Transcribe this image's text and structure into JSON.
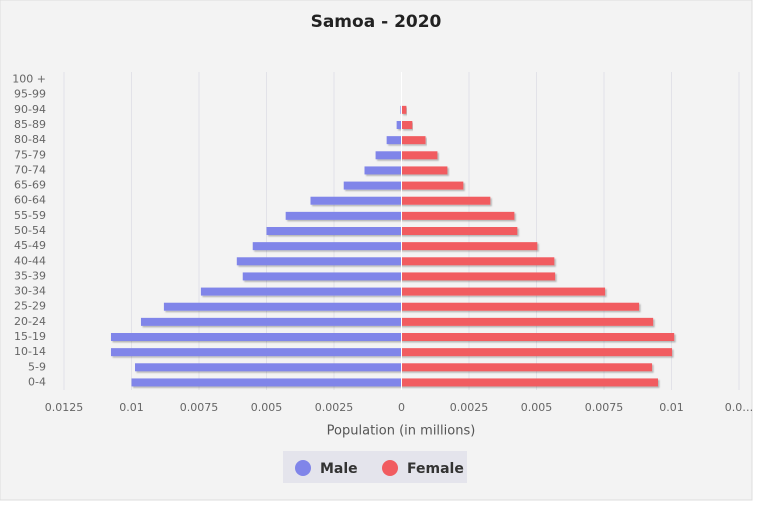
{
  "chart_data": {
    "type": "population-pyramid",
    "title": "Samoa - 2020",
    "x_label": "Population (in millions)",
    "categories": [
      "0-4",
      "5-9",
      "10-14",
      "15-19",
      "20-24",
      "25-29",
      "30-34",
      "35-39",
      "40-44",
      "45-49",
      "50-54",
      "55-59",
      "60-64",
      "65-69",
      "70-74",
      "75-79",
      "80-84",
      "85-89",
      "90-94",
      "95-99",
      "100 +"
    ],
    "series": [
      {
        "name": "Male",
        "color": "#8085e9",
        "values": [
          -0.01,
          -0.00987,
          -0.01076,
          -0.01076,
          -0.00965,
          -0.0088,
          -0.00743,
          -0.00588,
          -0.0061,
          -0.00551,
          -0.005,
          -0.00429,
          -0.00337,
          -0.00214,
          -0.00137,
          -0.00096,
          -0.00055,
          -0.00018,
          -4e-05,
          0,
          0
        ]
      },
      {
        "name": "Female",
        "color": "#f15c60",
        "values": [
          0.0095,
          0.00928,
          0.01002,
          0.0101,
          0.00932,
          0.0088,
          0.00754,
          0.00569,
          0.00566,
          0.00503,
          0.00429,
          0.00418,
          0.00329,
          0.00229,
          0.0017,
          0.00133,
          0.00089,
          0.0004,
          0.00018,
          0,
          0
        ]
      }
    ],
    "xlim": [
      -0.0125,
      0.0125
    ],
    "xticks": [
      {
        "value": -0.0125,
        "label": "0.0125"
      },
      {
        "value": -0.01,
        "label": "0.01"
      },
      {
        "value": -0.0075,
        "label": "0.0075"
      },
      {
        "value": -0.005,
        "label": "0.005"
      },
      {
        "value": -0.0025,
        "label": "0.0025"
      },
      0,
      0.0025,
      0.005,
      0.0075,
      0.01,
      {
        "value": 0.0125,
        "label": "0.0…"
      }
    ],
    "grid": true,
    "legend": "bottom"
  }
}
